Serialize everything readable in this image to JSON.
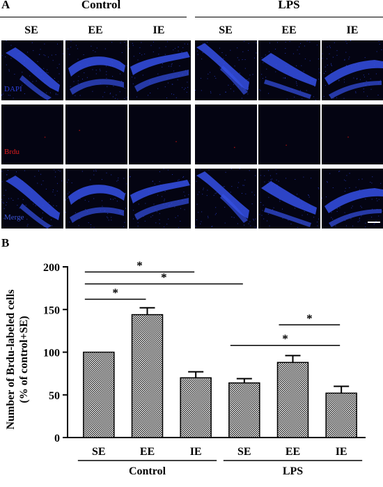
{
  "panel_a": {
    "letter": "A",
    "groups": [
      "Control",
      "LPS"
    ],
    "columns": [
      "SE",
      "EE",
      "IE",
      "SE",
      "EE",
      "IE"
    ],
    "rows": [
      {
        "stain": "DAPI",
        "color": "#2c3fd6",
        "signal": "dapi"
      },
      {
        "stain": "Brdu",
        "color": "#e11d1d",
        "signal": "brdu"
      },
      {
        "stain": "Merge",
        "color": "#3b54d8",
        "signal": "dapi"
      }
    ],
    "tile_bg": "#040412",
    "tile_band": "#3550e6"
  },
  "chart_data": {
    "type": "bar",
    "panel_letter": "B",
    "ylabel": "Number of  Brdu-labeled cells",
    "ylabel2": "(% of control+SE)",
    "ylim": [
      0,
      200
    ],
    "yticks": [
      0,
      50,
      100,
      150,
      200
    ],
    "categories": [
      "SE",
      "EE",
      "IE",
      "SE",
      "EE",
      "IE"
    ],
    "group_labels": [
      {
        "label": "Control",
        "from": 0,
        "to": 2
      },
      {
        "label": "LPS",
        "from": 3,
        "to": 5
      }
    ],
    "values": [
      100,
      144,
      70,
      64,
      88,
      52
    ],
    "errors": [
      0,
      8,
      7,
      5,
      8,
      8
    ],
    "significance": [
      {
        "from": 0,
        "to": 1,
        "y": 162,
        "label": "*"
      },
      {
        "from": 0,
        "to": 2,
        "y": 194,
        "label": "*"
      },
      {
        "from": 0,
        "to": 3,
        "y": 180,
        "label": "*"
      },
      {
        "from": 4,
        "to": 5,
        "y": 132,
        "label": "*"
      },
      {
        "from": 3,
        "to": 5,
        "y": 108,
        "label": "*"
      }
    ]
  }
}
